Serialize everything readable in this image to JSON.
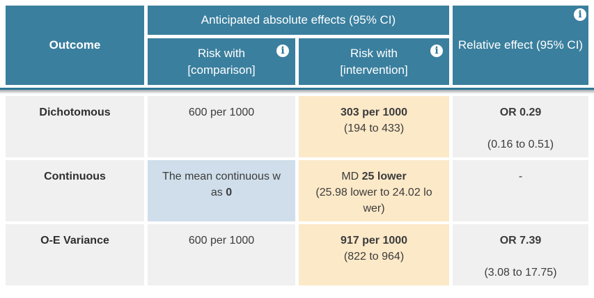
{
  "colors": {
    "header_bg": "#3a7f9e",
    "separator_line": "#2d7795",
    "row_bg": "#f0f0f0",
    "intervention_cell_bg": "#fce9c8",
    "comparison_highlight_bg": "#cfdeea",
    "header_text": "#ffffff",
    "body_text": "#3b3b3b"
  },
  "icons": {
    "info_glyph": "i"
  },
  "header": {
    "outcome": "Outcome",
    "absolute_effects": "Anticipated absolute effects (95% CI)",
    "risk_with_label": "Risk with",
    "comparison_name": "[comparison]",
    "intervention_name": "[intervention]",
    "relative_effect": "Relative effect (95% CI)"
  },
  "rows": [
    {
      "outcome": "Dichotomous",
      "comparison": {
        "prefix": "600 per 1000",
        "bold": ""
      },
      "intervention": {
        "prefix": "",
        "bold": "303 per 1000",
        "ci": "(194 to 433)"
      },
      "relative": {
        "value": "OR 0.29",
        "ci": "(0.16 to 0.51)"
      }
    },
    {
      "outcome": "Continuous",
      "comparison": {
        "prefix": "The mean continuous was ",
        "bold": "0"
      },
      "intervention": {
        "prefix": "MD ",
        "bold": "25 lower",
        "ci": "(25.98 lower to 24.02 lower)"
      },
      "relative": {
        "value": "-",
        "ci": ""
      }
    },
    {
      "outcome": "O-E Variance",
      "comparison": {
        "prefix": "600 per 1000",
        "bold": ""
      },
      "intervention": {
        "prefix": "",
        "bold": "917 per 1000",
        "ci": "(822 to 964)"
      },
      "relative": {
        "value": "OR 7.39",
        "ci": "(3.08 to 17.75)"
      }
    }
  ]
}
